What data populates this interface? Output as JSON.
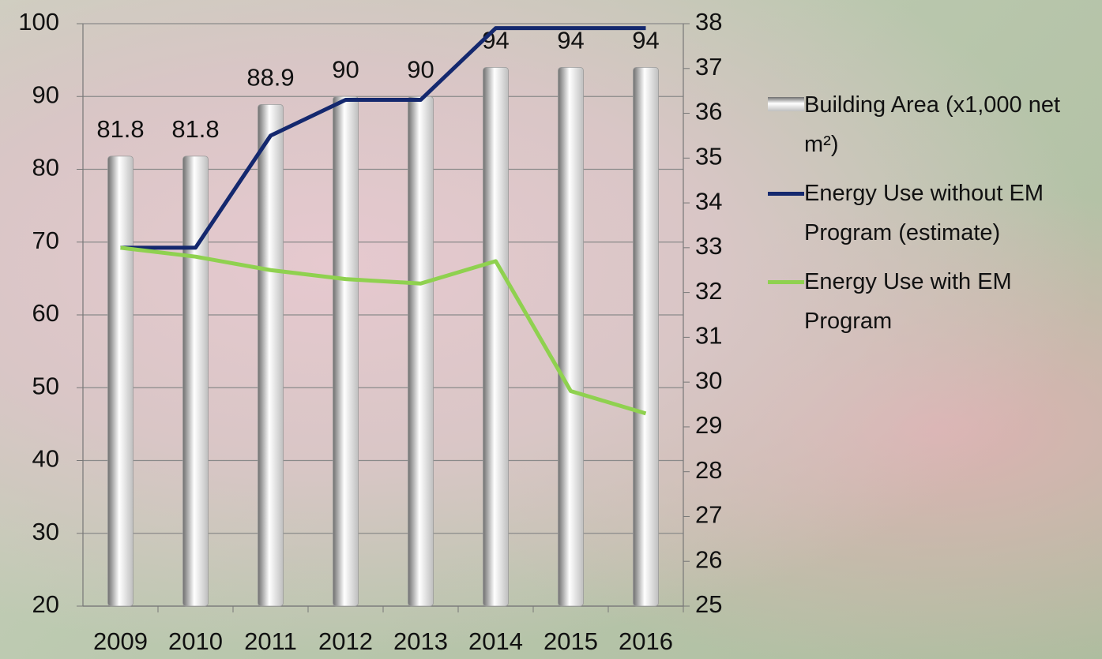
{
  "chart_data": {
    "type": "combo",
    "categories": [
      "2009",
      "2010",
      "2011",
      "2012",
      "2013",
      "2014",
      "2015",
      "2016"
    ],
    "series": [
      {
        "name": "Building Area (x1,000 net m²)",
        "type": "bar",
        "color": "#bfbfbf",
        "values": [
          81.8,
          81.8,
          88.9,
          90,
          90,
          94,
          94,
          94
        ]
      },
      {
        "name": "Energy Use without EM Program (estimate)",
        "type": "line",
        "axis": "y2",
        "color": "#14286e",
        "values": [
          33.0,
          33.0,
          35.5,
          36.3,
          36.3,
          37.9,
          37.9,
          37.9
        ]
      },
      {
        "name": "Energy Use with EM Program",
        "type": "line",
        "axis": "y2",
        "color": "#8fd14f",
        "values": [
          33.0,
          32.8,
          32.5,
          32.3,
          32.2,
          32.7,
          29.8,
          29.3
        ]
      }
    ],
    "ylim": [
      20,
      100
    ],
    "yticks": [
      20,
      30,
      40,
      50,
      60,
      70,
      80,
      90,
      100
    ],
    "y2lim": [
      25,
      38
    ],
    "y2ticks": [
      25,
      26,
      27,
      28,
      29,
      30,
      31,
      32,
      33,
      34,
      35,
      36,
      37,
      38
    ],
    "grid": true,
    "legend": "right"
  }
}
